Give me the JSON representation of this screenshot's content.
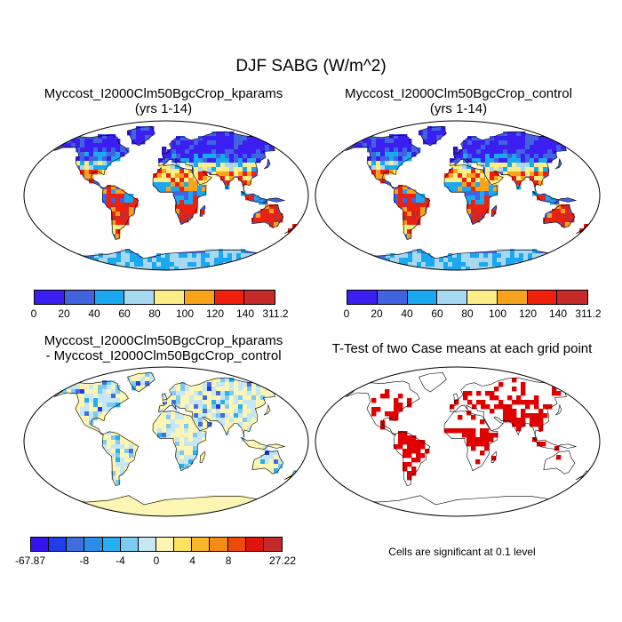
{
  "title": "DJF SABG (W/m^2)",
  "panels": {
    "kparams": {
      "line1": "Myccost_I2000Clm50BgcCrop_kparams",
      "line2": "(yrs 1-14)"
    },
    "control": {
      "line1": "Myccost_I2000Clm50BgcCrop_control",
      "line2": "(yrs 1-14)"
    },
    "difference": {
      "line1": "Myccost_I2000Clm50BgcCrop_kparams",
      "line2": "- Myccost_I2000Clm50BgcCrop_control"
    },
    "ttest": {
      "line1": "T-Test of two Case means at each grid point",
      "note": "Cells are significant at 0.1 level"
    }
  },
  "colorbars": {
    "absolute": {
      "colors": [
        "#3a1ef2",
        "#4263e0",
        "#1aa8f0",
        "#a8d8f0",
        "#fbee86",
        "#f9a21c",
        "#f0200c",
        "#c62a2a"
      ],
      "labels": [
        "0",
        "20",
        "40",
        "60",
        "80",
        "100",
        "120",
        "140",
        "311.2"
      ]
    },
    "difference": {
      "colors": [
        "#3214f0",
        "#1f3ee8",
        "#3f6fdc",
        "#2b8ee8",
        "#24b0f0",
        "#7ccaf0",
        "#c6e6f4",
        "#fdf5b4",
        "#fde25e",
        "#f9b62a",
        "#f58a14",
        "#f04a0a",
        "#e0140c",
        "#c42a2a"
      ],
      "labels": [
        "-67.87",
        "-8",
        "-4",
        "0",
        "4",
        "8",
        "27.22"
      ]
    },
    "significance_color": "#e00000"
  }
}
